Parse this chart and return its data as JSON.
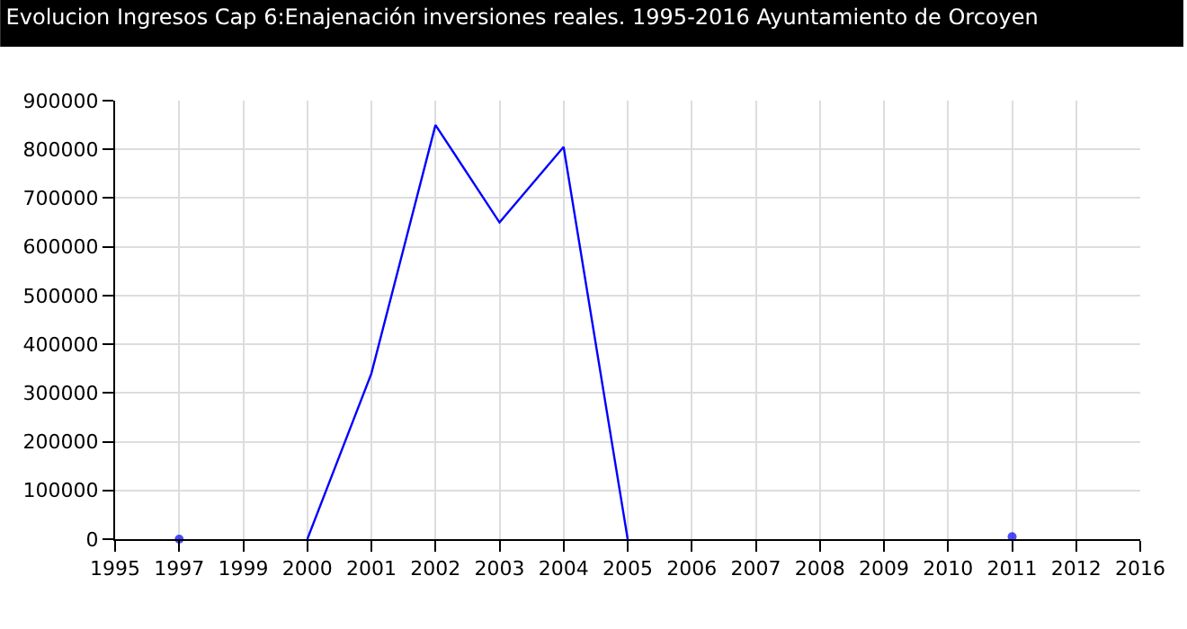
{
  "chart_data": {
    "type": "line",
    "title": "Evolucion Ingresos Cap 6:Enajenación inversiones reales. 1995-2016 Ayuntamiento de Orcoyen",
    "categories": [
      "1995",
      "1997",
      "1999",
      "2000",
      "2001",
      "2002",
      "2003",
      "2004",
      "2005",
      "2006",
      "2007",
      "2008",
      "2009",
      "2010",
      "2011",
      "2012",
      "2016"
    ],
    "series": [
      {
        "color": "#0000ff",
        "values": [
          null,
          0,
          null,
          0,
          340000,
          850000,
          650000,
          805000,
          0,
          null,
          null,
          null,
          null,
          null,
          5000,
          null,
          null
        ]
      }
    ],
    "ylim": [
      0,
      900000
    ],
    "yticks": [
      0,
      100000,
      200000,
      300000,
      400000,
      500000,
      600000,
      700000,
      800000,
      900000
    ],
    "grid": true,
    "legend": false
  }
}
